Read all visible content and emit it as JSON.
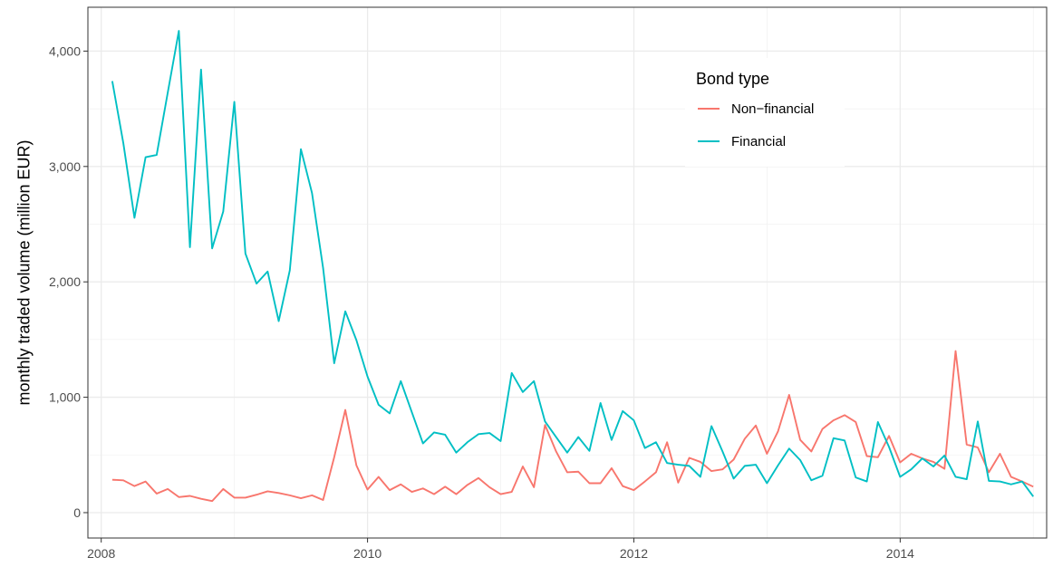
{
  "chart_data": {
    "type": "line",
    "title": "",
    "xlabel": "",
    "ylabel": "monthly traded volume (million EUR)",
    "xlim": [
      2007.9,
      2015.1
    ],
    "ylim": [
      -220,
      4380
    ],
    "x_ticks": [
      {
        "value": 2008,
        "label": "2008"
      },
      {
        "value": 2010,
        "label": "2010"
      },
      {
        "value": 2012,
        "label": "2012"
      },
      {
        "value": 2014,
        "label": "2014"
      }
    ],
    "y_ticks": [
      {
        "value": 0,
        "label": "0"
      },
      {
        "value": 1000,
        "label": "1,000"
      },
      {
        "value": 2000,
        "label": "2,000"
      },
      {
        "value": 3000,
        "label": "3,000"
      },
      {
        "value": 4000,
        "label": "4,000"
      }
    ],
    "grid": true,
    "legend": {
      "title": "Bond type",
      "position": "top-right"
    },
    "x_start": 2008.083,
    "x_step": 0.08333,
    "series": [
      {
        "name": "Non−financial",
        "color": "#f8766d",
        "values": [
          285,
          280,
          230,
          270,
          165,
          205,
          135,
          145,
          120,
          100,
          205,
          130,
          130,
          155,
          185,
          170,
          150,
          125,
          150,
          110,
          480,
          890,
          410,
          200,
          310,
          195,
          245,
          180,
          210,
          160,
          225,
          160,
          240,
          300,
          220,
          160,
          180,
          400,
          220,
          760,
          530,
          350,
          355,
          255,
          255,
          385,
          230,
          195,
          270,
          350,
          610,
          260,
          475,
          440,
          360,
          375,
          460,
          640,
          755,
          510,
          705,
          1020,
          630,
          530,
          725,
          800,
          845,
          785,
          490,
          480,
          665,
          435,
          510,
          470,
          440,
          380,
          1400,
          590,
          565,
          350,
          510,
          310,
          270,
          225
        ]
      },
      {
        "name": "Financial",
        "color": "#00bfc4",
        "values": [
          3740,
          3200,
          2555,
          3080,
          3100,
          3640,
          4175,
          2300,
          3840,
          2290,
          2610,
          3560,
          2245,
          1985,
          2090,
          1660,
          2100,
          3150,
          2770,
          2120,
          1295,
          1745,
          1495,
          1180,
          935,
          860,
          1140,
          870,
          600,
          695,
          675,
          520,
          610,
          680,
          690,
          620,
          1210,
          1045,
          1140,
          790,
          655,
          520,
          655,
          535,
          950,
          630,
          880,
          800,
          560,
          610,
          430,
          415,
          405,
          310,
          750,
          530,
          295,
          405,
          415,
          255,
          410,
          555,
          455,
          280,
          320,
          645,
          625,
          305,
          270,
          785,
          570,
          310,
          375,
          470,
          400,
          495,
          310,
          290,
          790,
          275,
          270,
          245,
          270,
          140
        ]
      }
    ]
  }
}
